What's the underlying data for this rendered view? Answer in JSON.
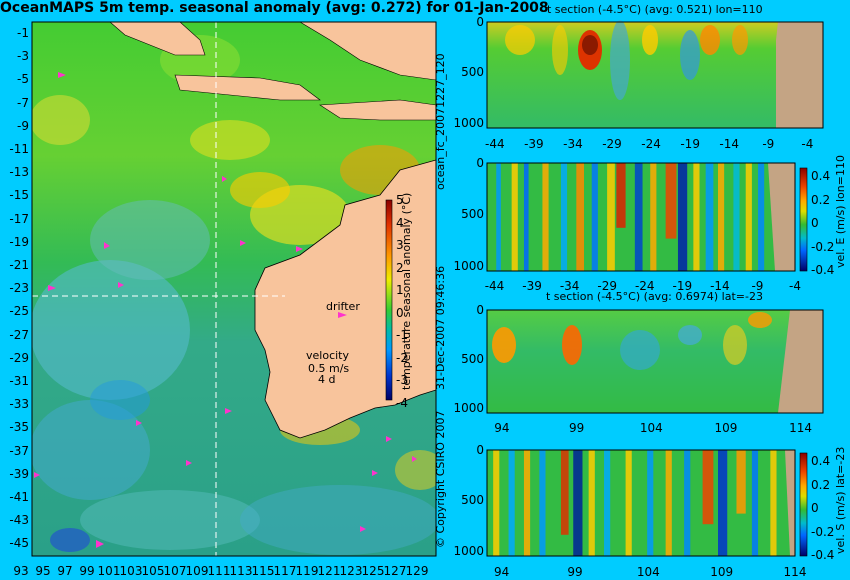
{
  "title": "OceanMAPS 5m temp. seasonal anomaly (avg: 0.272) for 01-Jan-2008",
  "side_texts": {
    "run_id": "ocean_fc_20071227_120",
    "created": "31-Dec-2007 09:46:36",
    "copyright": "© Copyright CSIRO 2007"
  },
  "colors": {
    "background": "#00ccff",
    "land": "#f8c49c",
    "section_land": "#c4a484",
    "drifter_marker": "#ff33cc"
  },
  "chart_data": [
    {
      "type": "heatmap",
      "name": "map",
      "xticks": [
        "93",
        "95",
        "97",
        "99",
        "101",
        "103",
        "105",
        "107",
        "109",
        "111",
        "113",
        "115",
        "117",
        "119",
        "121",
        "123",
        "125",
        "127",
        "129"
      ],
      "yticks": [
        "-1",
        "-3",
        "-5",
        "-7",
        "-9",
        "-11",
        "-13",
        "-15",
        "-17",
        "-19",
        "-21",
        "-23",
        "-25",
        "-27",
        "-29",
        "-31",
        "-33",
        "-35",
        "-37",
        "-39",
        "-41",
        "-43",
        "-45"
      ],
      "xlim": [
        93,
        130
      ],
      "ylim": [
        -45,
        0
      ],
      "colorbar": {
        "label": "temperature seasonal anomaly (°C)",
        "ticks": [
          "5",
          "4",
          "3",
          "2",
          "1",
          "0",
          "-1",
          "-2",
          "-3",
          "-4"
        ],
        "range": [
          -4,
          5
        ]
      },
      "annotations": {
        "drifter": "drifter",
        "velocity": "velocity",
        "speed": "0.5 m/s",
        "duration": "4 d"
      },
      "crosshair": {
        "lon": 110,
        "lat": -23
      }
    },
    {
      "type": "heatmap",
      "name": "t-section-lon110",
      "title": "t section (-4.5°C) (avg: 0.521) lon=110",
      "xticks": [
        "-44",
        "-39",
        "-34",
        "-29",
        "-24",
        "-19",
        "-14",
        "-9",
        "-4"
      ],
      "yticks": [
        "0",
        "500",
        "1000"
      ],
      "land_from_x": -9
    },
    {
      "type": "heatmap",
      "name": "vel-e-section-lon110",
      "xticks": [
        "-44",
        "-39",
        "-34",
        "-29",
        "-24",
        "-19",
        "-14",
        "-9",
        "-4"
      ],
      "yticks": [
        "0",
        "500",
        "1000"
      ],
      "colorbar": {
        "label": "vel. E (m/s) lon=110",
        "ticks": [
          "0.4",
          "0.2",
          "0",
          "-0.2",
          "-0.4"
        ],
        "range": [
          -0.4,
          0.4
        ]
      }
    },
    {
      "type": "heatmap",
      "name": "t-section-lat-23",
      "title": "t section (-4.5°C) (avg: 0.6974) lat=-23",
      "xticks": [
        "94",
        "99",
        "104",
        "109",
        "114"
      ],
      "yticks": [
        "0",
        "500",
        "1000"
      ],
      "land_from_x": 113
    },
    {
      "type": "heatmap",
      "name": "vel-s-section-lat-23",
      "xticks": [
        "94",
        "99",
        "104",
        "109",
        "114"
      ],
      "yticks": [
        "0",
        "500",
        "1000"
      ],
      "colorbar": {
        "label": "vel. S (m/s) lat=-23",
        "ticks": [
          "0.4",
          "0.2",
          "0",
          "-0.2",
          "-0.4"
        ],
        "range": [
          -0.4,
          0.4
        ]
      }
    }
  ]
}
